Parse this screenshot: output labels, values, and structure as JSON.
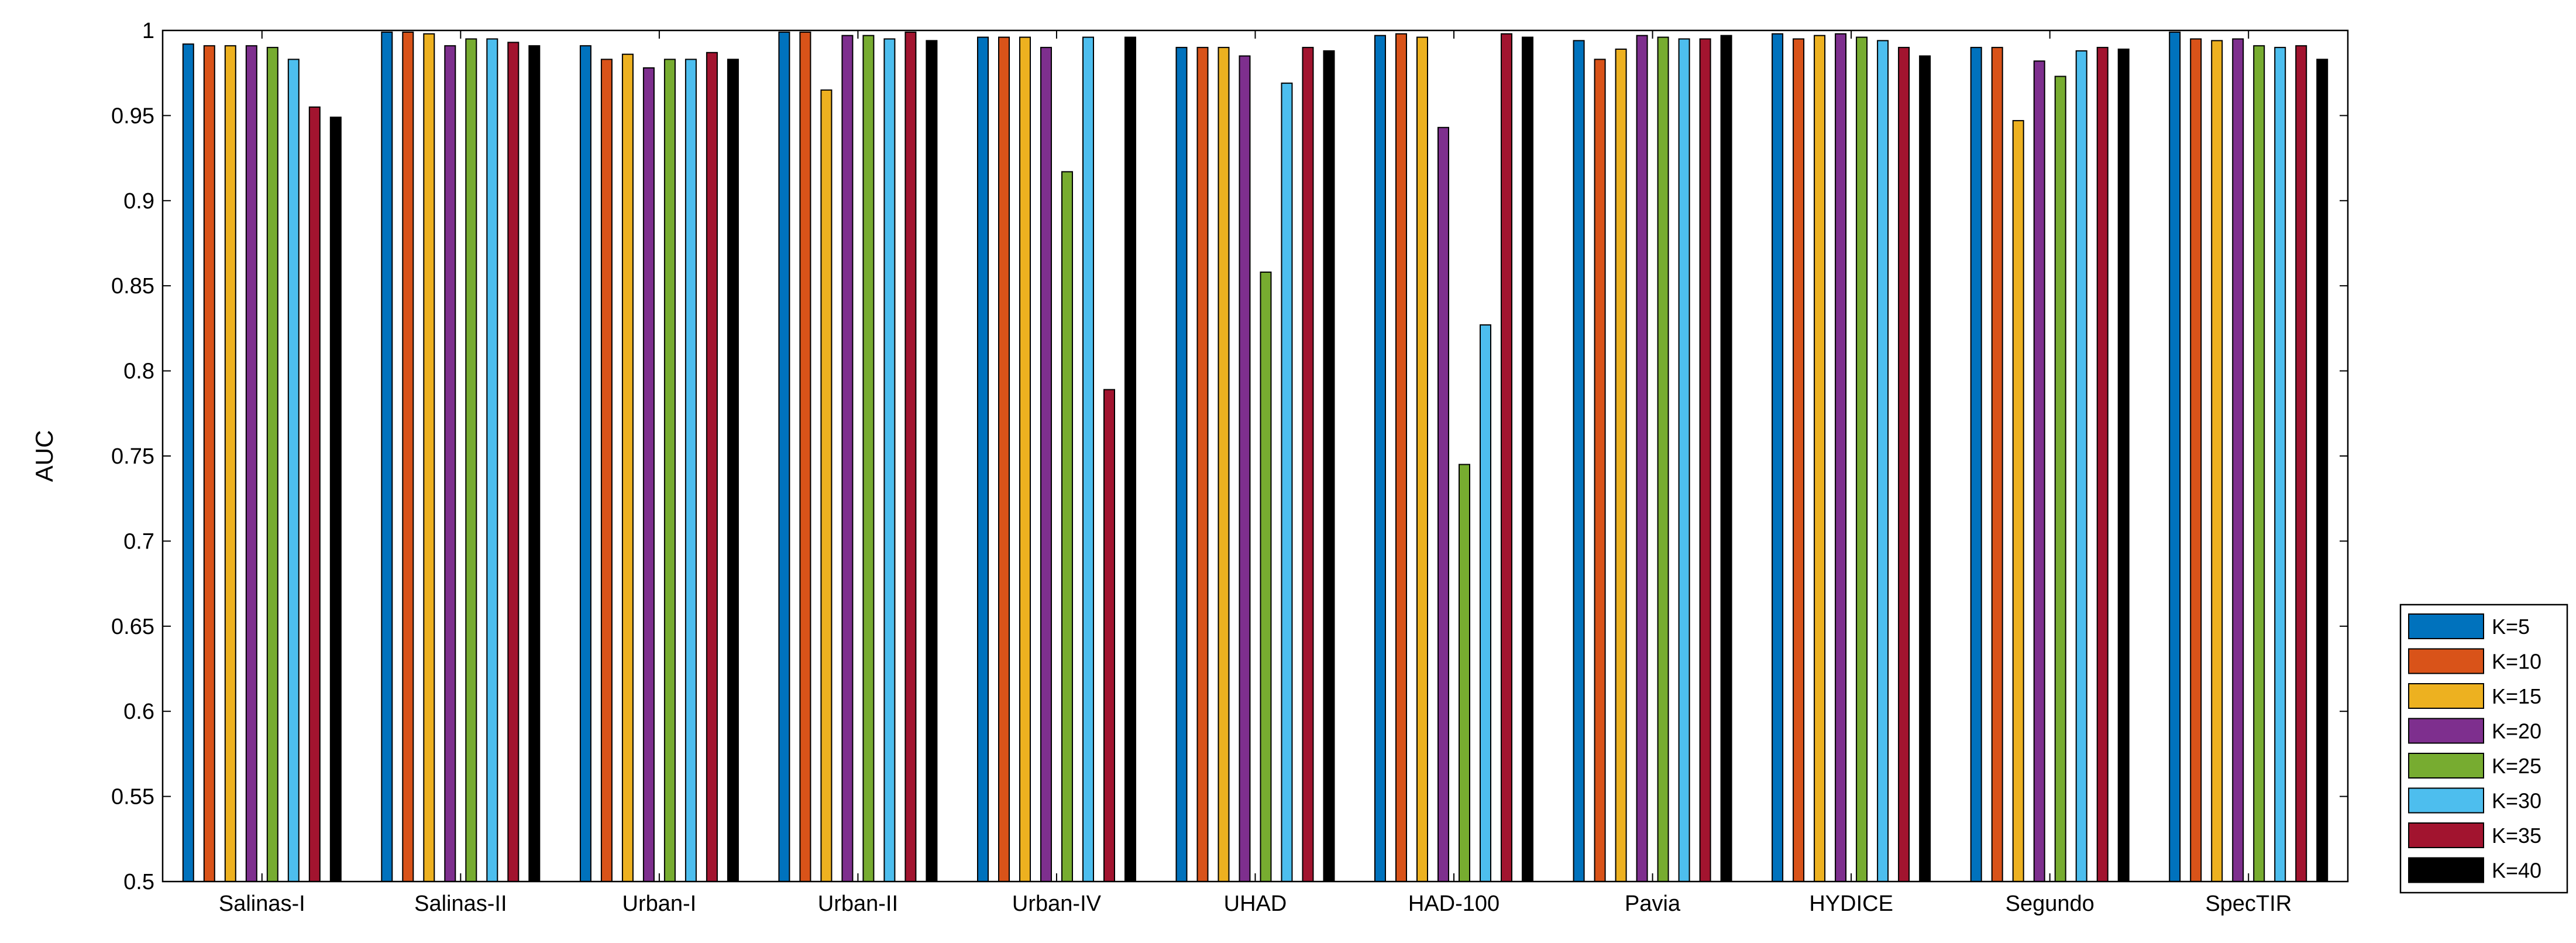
{
  "chart_data": {
    "type": "bar",
    "title": "",
    "xlabel": "",
    "ylabel": "AUC",
    "ylim": [
      0.5,
      1
    ],
    "yticks": [
      0.5,
      0.55,
      0.6,
      0.65,
      0.7,
      0.75,
      0.8,
      0.85,
      0.9,
      0.95,
      1
    ],
    "ytick_labels": [
      "0.5",
      "0.55",
      "0.6",
      "0.65",
      "0.7",
      "0.75",
      "0.8",
      "0.85",
      "0.9",
      "0.95",
      "1"
    ],
    "grid": false,
    "legend_position": "bottom-right",
    "categories": [
      "Salinas-I",
      "Salinas-II",
      "Urban-I",
      "Urban-II",
      "Urban-IV",
      "UHAD",
      "HAD-100",
      "Pavia",
      "HYDICE",
      "Segundo",
      "SpecTIR"
    ],
    "series": [
      {
        "name": "K=5",
        "color": "#0072BD",
        "values": [
          0.992,
          0.999,
          0.991,
          0.999,
          0.996,
          0.99,
          0.997,
          0.994,
          0.998,
          0.99,
          0.999
        ]
      },
      {
        "name": "K=10",
        "color": "#D95319",
        "values": [
          0.991,
          0.999,
          0.983,
          0.999,
          0.996,
          0.99,
          0.998,
          0.983,
          0.995,
          0.99,
          0.995
        ]
      },
      {
        "name": "K=15",
        "color": "#EDB120",
        "values": [
          0.991,
          0.998,
          0.986,
          0.965,
          0.996,
          0.99,
          0.996,
          0.989,
          0.997,
          0.947,
          0.994
        ]
      },
      {
        "name": "K=20",
        "color": "#7E2F8E",
        "values": [
          0.991,
          0.991,
          0.978,
          0.997,
          0.99,
          0.985,
          0.943,
          0.997,
          0.998,
          0.982,
          0.995
        ]
      },
      {
        "name": "K=25",
        "color": "#77AC30",
        "values": [
          0.99,
          0.995,
          0.983,
          0.997,
          0.917,
          0.858,
          0.745,
          0.996,
          0.996,
          0.973,
          0.991
        ]
      },
      {
        "name": "K=30",
        "color": "#4DBEEE",
        "values": [
          0.983,
          0.995,
          0.983,
          0.995,
          0.996,
          0.969,
          0.827,
          0.995,
          0.994,
          0.988,
          0.99
        ]
      },
      {
        "name": "K=35",
        "color": "#A2142F",
        "values": [
          0.955,
          0.993,
          0.987,
          0.999,
          0.789,
          0.99,
          0.998,
          0.995,
          0.99,
          0.99,
          0.991
        ]
      },
      {
        "name": "K=40",
        "color": "#000000",
        "values": [
          0.949,
          0.991,
          0.983,
          0.994,
          0.996,
          0.988,
          0.996,
          0.997,
          0.985,
          0.989,
          0.983
        ]
      }
    ]
  }
}
